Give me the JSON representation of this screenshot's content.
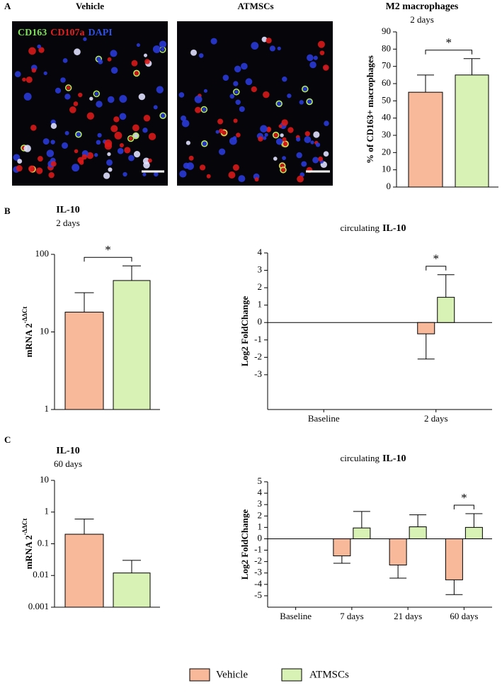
{
  "panel_labels": [
    "A",
    "B",
    "C"
  ],
  "images": {
    "vehicle_title": "Vehicle",
    "atmscs_title": "ATMSCs",
    "stains": [
      "CD163",
      "CD107a",
      "DAPI"
    ]
  },
  "legend": [
    {
      "name": "Vehicle",
      "color": "#f8b99b"
    },
    {
      "name": "ATMSCs",
      "color": "#d8f1b4"
    }
  ],
  "chart_data": [
    {
      "type": "bar",
      "title": "M2 macrophages",
      "subtitle": "2 days",
      "y_label": "% of CD163+ macrophages",
      "categories": [
        null,
        null
      ],
      "values": [
        55,
        65
      ],
      "errors": [
        10,
        9.5
      ],
      "ylim": [
        0,
        90
      ],
      "yticks": [
        0,
        10,
        20,
        30,
        40,
        50,
        60,
        70,
        80,
        90
      ],
      "annotations": [
        {
          "text": "*"
        }
      ]
    },
    {
      "type": "bar",
      "title": "IL-10",
      "subtitle": "2 days",
      "y_label": "mRNA 2",
      "y_label_sup": "-ΔΔCt",
      "log_scale": true,
      "categories": [
        null,
        null
      ],
      "values": [
        18,
        46
      ],
      "errors": [
        14,
        25
      ],
      "ylim": [
        1,
        100
      ],
      "yticks": [
        1,
        10,
        100
      ],
      "annotations": [
        {
          "text": "*"
        }
      ]
    },
    {
      "type": "grouped_bar",
      "title": "circulating",
      "title_bold": "IL-10",
      "y_label": "Log2 FoldChange",
      "categories": [
        "Baseline",
        "2 days"
      ],
      "series": [
        {
          "values": [
            null,
            -0.65
          ],
          "errors": [
            null,
            1.45
          ]
        },
        {
          "values": [
            null,
            1.45
          ],
          "errors": [
            null,
            1.3
          ]
        }
      ],
      "ylim": [
        -5,
        4
      ],
      "yticks": [
        -3,
        -2,
        -1,
        0,
        1,
        2,
        3,
        4
      ],
      "annotations": [
        {
          "text": "*",
          "category": 1
        }
      ]
    },
    {
      "type": "bar",
      "title": "IL-10",
      "subtitle": "60 days",
      "y_label": "mRNA 2",
      "y_label_sup": "-ΔΔCt",
      "log_scale": true,
      "categories": [
        null,
        null
      ],
      "values": [
        0.2,
        0.012
      ],
      "errors": [
        0.4,
        0.018
      ],
      "ylim": [
        0.001,
        10
      ],
      "yticks": [
        0.001,
        0.01,
        0.1,
        1,
        10
      ],
      "annotations": []
    },
    {
      "type": "grouped_bar",
      "title": "circulating",
      "title_bold": "IL-10",
      "y_label": "Log2 FoldChange",
      "categories": [
        "Baseline",
        "7 days",
        "21 days",
        "60 days"
      ],
      "series": [
        {
          "values": [
            null,
            -1.5,
            -2.3,
            -3.6
          ],
          "errors": [
            null,
            0.65,
            1.15,
            1.3
          ]
        },
        {
          "values": [
            null,
            0.95,
            1.05,
            1.0
          ],
          "errors": [
            null,
            1.45,
            1.05,
            1.2
          ]
        }
      ],
      "ylim": [
        -6,
        5
      ],
      "yticks": [
        -5,
        -4,
        -3,
        -2,
        -1,
        0,
        1,
        2,
        3,
        4,
        5
      ],
      "annotations": [
        {
          "text": "*",
          "category": 3
        }
      ]
    }
  ]
}
